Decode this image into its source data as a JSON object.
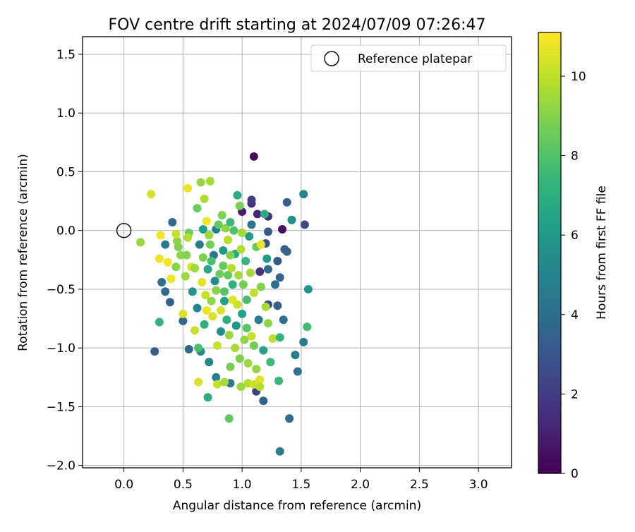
{
  "chart_data": {
    "type": "scatter",
    "title": "FOV centre drift starting at 2024/07/09 07:26:47",
    "xlabel": "Angular distance from reference (arcmin)",
    "ylabel": "Rotation from reference (arcmin)",
    "xlim": [
      -0.35,
      3.28
    ],
    "ylim": [
      -2.02,
      1.65
    ],
    "xticks": [
      0.0,
      0.5,
      1.0,
      1.5,
      2.0,
      2.5,
      3.0
    ],
    "xtick_labels": [
      "0.0",
      "0.5",
      "1.0",
      "1.5",
      "2.0",
      "2.5",
      "3.0"
    ],
    "yticks": [
      1.5,
      1.0,
      0.5,
      0.0,
      -0.5,
      -1.0,
      -1.5,
      -2.0
    ],
    "ytick_labels": [
      "1.5",
      "1.0",
      "0.5",
      "0.0",
      "−0.5",
      "−1.0",
      "−1.5",
      "−2.0"
    ],
    "grid": true,
    "legend": {
      "position": "top-right",
      "label": "Reference platepar",
      "marker": "open-circle"
    },
    "reference": {
      "x": 0.0,
      "y": 0.0
    },
    "colorbar": {
      "label": "Hours from first FF file",
      "colormap": "viridis",
      "range": [
        0,
        11.1
      ],
      "ticks": [
        0,
        2,
        4,
        6,
        8,
        10
      ],
      "tick_labels": [
        "0",
        "2",
        "4",
        "6",
        "8",
        "10"
      ]
    },
    "colormap_stops": [
      "#440154",
      "#482878",
      "#3e4989",
      "#31688e",
      "#26828e",
      "#1f9e89",
      "#35b779",
      "#6ece58",
      "#b5de2b",
      "#fde725"
    ],
    "points": [
      {
        "x": 1.1,
        "y": 0.63,
        "c": 0.3
      },
      {
        "x": 1.34,
        "y": 0.01,
        "c": 0.5
      },
      {
        "x": 1.0,
        "y": 0.16,
        "c": 1.0
      },
      {
        "x": 1.08,
        "y": 0.23,
        "c": 1.4
      },
      {
        "x": 1.13,
        "y": 0.14,
        "c": 1.1
      },
      {
        "x": 1.22,
        "y": 0.12,
        "c": 1.6
      },
      {
        "x": 1.53,
        "y": 0.05,
        "c": 2.4
      },
      {
        "x": 1.08,
        "y": 0.26,
        "c": 2.0
      },
      {
        "x": 1.15,
        "y": -0.35,
        "c": 1.5
      },
      {
        "x": 1.12,
        "y": -1.37,
        "c": 2.2
      },
      {
        "x": 1.22,
        "y": -0.01,
        "c": 3.2
      },
      {
        "x": 1.38,
        "y": 0.24,
        "c": 3.4
      },
      {
        "x": 1.2,
        "y": -0.11,
        "c": 2.8
      },
      {
        "x": 1.42,
        "y": 0.09,
        "c": 5.6
      },
      {
        "x": 1.52,
        "y": 0.31,
        "c": 5.0
      },
      {
        "x": 1.36,
        "y": -0.16,
        "c": 3.3
      },
      {
        "x": 1.38,
        "y": -0.18,
        "c": 3.5
      },
      {
        "x": 1.3,
        "y": -0.26,
        "c": 3.2
      },
      {
        "x": 1.32,
        "y": -0.4,
        "c": 3.6
      },
      {
        "x": 1.22,
        "y": -0.33,
        "c": 3.8
      },
      {
        "x": 1.56,
        "y": -0.5,
        "c": 5.7
      },
      {
        "x": 1.3,
        "y": -0.64,
        "c": 3.4
      },
      {
        "x": 1.22,
        "y": -0.63,
        "c": 2.5
      },
      {
        "x": 1.35,
        "y": -0.76,
        "c": 4.1
      },
      {
        "x": 1.55,
        "y": -0.82,
        "c": 7.7
      },
      {
        "x": 1.52,
        "y": -0.95,
        "c": 4.6
      },
      {
        "x": 1.45,
        "y": -1.06,
        "c": 4.8
      },
      {
        "x": 1.47,
        "y": -1.2,
        "c": 4.2
      },
      {
        "x": 1.4,
        "y": -1.6,
        "c": 4.0
      },
      {
        "x": 1.32,
        "y": -1.88,
        "c": 4.8
      },
      {
        "x": 1.18,
        "y": -1.45,
        "c": 3.6
      },
      {
        "x": 0.26,
        "y": -1.03,
        "c": 3.3
      },
      {
        "x": 0.35,
        "y": -0.52,
        "c": 3.8
      },
      {
        "x": 0.32,
        "y": -0.44,
        "c": 4.0
      },
      {
        "x": 0.39,
        "y": -0.61,
        "c": 3.5
      },
      {
        "x": 0.35,
        "y": -0.12,
        "c": 4.6
      },
      {
        "x": 0.41,
        "y": 0.07,
        "c": 3.8
      },
      {
        "x": 0.5,
        "y": -0.77,
        "c": 3.6
      },
      {
        "x": 0.55,
        "y": -1.01,
        "c": 3.7
      },
      {
        "x": 0.65,
        "y": -1.03,
        "c": 5.3
      },
      {
        "x": 0.72,
        "y": -1.12,
        "c": 5.0
      },
      {
        "x": 0.78,
        "y": -1.25,
        "c": 4.8
      },
      {
        "x": 0.9,
        "y": -1.3,
        "c": 4.5
      },
      {
        "x": 0.71,
        "y": -1.42,
        "c": 6.9
      },
      {
        "x": 0.89,
        "y": -1.6,
        "c": 8.3
      },
      {
        "x": 0.63,
        "y": -1.29,
        "c": 10.5
      },
      {
        "x": 0.79,
        "y": -1.31,
        "c": 10.1
      },
      {
        "x": 0.85,
        "y": -1.29,
        "c": 9.6
      },
      {
        "x": 0.9,
        "y": -1.16,
        "c": 8.8
      },
      {
        "x": 0.99,
        "y": -1.33,
        "c": 9.4
      },
      {
        "x": 1.05,
        "y": -1.3,
        "c": 9.8
      },
      {
        "x": 1.1,
        "y": -1.31,
        "c": 10.3
      },
      {
        "x": 1.15,
        "y": -1.27,
        "c": 10.6
      },
      {
        "x": 1.15,
        "y": -1.33,
        "c": 9.9
      },
      {
        "x": 1.31,
        "y": -1.28,
        "c": 7.4
      },
      {
        "x": 0.3,
        "y": -0.78,
        "c": 7.2
      },
      {
        "x": 0.14,
        "y": -0.1,
        "c": 9.3
      },
      {
        "x": 0.23,
        "y": 0.31,
        "c": 10.4
      },
      {
        "x": 0.3,
        "y": -0.24,
        "c": 10.8
      },
      {
        "x": 0.31,
        "y": -0.04,
        "c": 10.9
      },
      {
        "x": 0.37,
        "y": -0.27,
        "c": 10.9
      },
      {
        "x": 0.4,
        "y": -0.41,
        "c": 10.9
      },
      {
        "x": 0.44,
        "y": -0.31,
        "c": 9.0
      },
      {
        "x": 0.45,
        "y": -0.09,
        "c": 9.2
      },
      {
        "x": 0.46,
        "y": -0.14,
        "c": 8.9
      },
      {
        "x": 0.48,
        "y": -0.21,
        "c": 9.1
      },
      {
        "x": 0.5,
        "y": -0.71,
        "c": 10.5
      },
      {
        "x": 0.52,
        "y": -0.39,
        "c": 9.4
      },
      {
        "x": 0.53,
        "y": -0.21,
        "c": 9.0
      },
      {
        "x": 0.54,
        "y": 0.36,
        "c": 10.8
      },
      {
        "x": 0.55,
        "y": -0.02,
        "c": 8.6
      },
      {
        "x": 0.57,
        "y": -0.31,
        "c": 10.6
      },
      {
        "x": 0.6,
        "y": -0.32,
        "c": 9.4
      },
      {
        "x": 0.6,
        "y": -0.85,
        "c": 10.2
      },
      {
        "x": 0.62,
        "y": 0.19,
        "c": 8.5
      },
      {
        "x": 0.63,
        "y": -1.0,
        "c": 7.8
      },
      {
        "x": 0.64,
        "y": -0.12,
        "c": 4.8
      },
      {
        "x": 0.65,
        "y": 0.41,
        "c": 9.3
      },
      {
        "x": 0.66,
        "y": -0.44,
        "c": 10.7
      },
      {
        "x": 0.67,
        "y": 0.01,
        "c": 6.3
      },
      {
        "x": 0.67,
        "y": -0.23,
        "c": 8.9
      },
      {
        "x": 0.68,
        "y": 0.27,
        "c": 9.7
      },
      {
        "x": 0.69,
        "y": -0.55,
        "c": 10.2
      },
      {
        "x": 0.7,
        "y": 0.08,
        "c": 10.9
      },
      {
        "x": 0.7,
        "y": -0.68,
        "c": 10.8
      },
      {
        "x": 0.71,
        "y": -0.33,
        "c": 6.5
      },
      {
        "x": 0.73,
        "y": 0.42,
        "c": 9.6
      },
      {
        "x": 0.73,
        "y": -0.12,
        "c": 8.7
      },
      {
        "x": 0.74,
        "y": -0.6,
        "c": 9.2
      },
      {
        "x": 0.75,
        "y": -0.73,
        "c": 10.4
      },
      {
        "x": 0.76,
        "y": -0.21,
        "c": 4.4
      },
      {
        "x": 0.77,
        "y": -0.43,
        "c": 5.3
      },
      {
        "x": 0.78,
        "y": 0.01,
        "c": 4.9
      },
      {
        "x": 0.79,
        "y": -0.98,
        "c": 10.2
      },
      {
        "x": 0.8,
        "y": 0.05,
        "c": 8.3
      },
      {
        "x": 0.81,
        "y": -0.37,
        "c": 8.6
      },
      {
        "x": 0.82,
        "y": -0.68,
        "c": 10.5
      },
      {
        "x": 0.83,
        "y": 0.13,
        "c": 8.9
      },
      {
        "x": 0.84,
        "y": -0.17,
        "c": 5.9
      },
      {
        "x": 0.85,
        "y": -0.52,
        "c": 8.1
      },
      {
        "x": 0.86,
        "y": 0.02,
        "c": 9.2
      },
      {
        "x": 0.87,
        "y": -0.76,
        "c": 7.0
      },
      {
        "x": 0.88,
        "y": -0.38,
        "c": 8.4
      },
      {
        "x": 0.89,
        "y": -0.89,
        "c": 9.4
      },
      {
        "x": 0.9,
        "y": 0.07,
        "c": 7.5
      },
      {
        "x": 0.91,
        "y": -0.32,
        "c": 9.9
      },
      {
        "x": 0.92,
        "y": -0.59,
        "c": 10.6
      },
      {
        "x": 0.93,
        "y": 0.0,
        "c": 8.0
      },
      {
        "x": 0.94,
        "y": -0.2,
        "c": 6.6
      },
      {
        "x": 0.95,
        "y": -0.81,
        "c": 5.8
      },
      {
        "x": 0.96,
        "y": 0.3,
        "c": 6.8
      },
      {
        "x": 0.97,
        "y": -0.38,
        "c": 9.6
      },
      {
        "x": 0.98,
        "y": -1.09,
        "c": 8.9
      },
      {
        "x": 0.99,
        "y": -0.16,
        "c": 9.8
      },
      {
        "x": 1.0,
        "y": -0.71,
        "c": 6.4
      },
      {
        "x": 1.01,
        "y": -0.46,
        "c": 8.7
      },
      {
        "x": 1.02,
        "y": -0.93,
        "c": 9.2
      },
      {
        "x": 1.03,
        "y": -0.26,
        "c": 7.4
      },
      {
        "x": 1.04,
        "y": -0.59,
        "c": 7.8
      },
      {
        "x": 1.05,
        "y": -1.13,
        "c": 9.4
      },
      {
        "x": 1.06,
        "y": -0.05,
        "c": 6.0
      },
      {
        "x": 1.07,
        "y": -0.36,
        "c": 9.6
      },
      {
        "x": 1.08,
        "y": -0.9,
        "c": 10.2
      },
      {
        "x": 1.1,
        "y": -0.53,
        "c": 10.0
      },
      {
        "x": 1.12,
        "y": -0.14,
        "c": 8.5
      },
      {
        "x": 1.14,
        "y": -0.76,
        "c": 4.6
      },
      {
        "x": 1.16,
        "y": -0.48,
        "c": 9.0
      },
      {
        "x": 1.18,
        "y": -1.02,
        "c": 6.5
      },
      {
        "x": 1.19,
        "y": 0.14,
        "c": 6.8
      },
      {
        "x": 1.2,
        "y": -0.65,
        "c": 9.6
      },
      {
        "x": 1.21,
        "y": -0.24,
        "c": 6.0
      },
      {
        "x": 1.22,
        "y": -0.79,
        "c": 9.2
      },
      {
        "x": 1.24,
        "y": -1.12,
        "c": 7.5
      },
      {
        "x": 1.26,
        "y": -0.92,
        "c": 10.0
      },
      {
        "x": 1.28,
        "y": -0.46,
        "c": 3.9
      },
      {
        "x": 1.32,
        "y": -0.91,
        "c": 7.2
      },
      {
        "x": 0.85,
        "y": -0.6,
        "c": 6.2
      },
      {
        "x": 0.88,
        "y": -0.08,
        "c": 9.9
      },
      {
        "x": 0.92,
        "y": -0.46,
        "c": 7.0
      },
      {
        "x": 0.96,
        "y": -0.63,
        "c": 10.3
      },
      {
        "x": 1.0,
        "y": -0.02,
        "c": 9.5
      },
      {
        "x": 0.78,
        "y": -0.51,
        "c": 9.1
      },
      {
        "x": 0.74,
        "y": -0.26,
        "c": 7.8
      },
      {
        "x": 0.82,
        "y": -0.86,
        "c": 5.4
      },
      {
        "x": 0.58,
        "y": -0.52,
        "c": 5.7
      },
      {
        "x": 0.62,
        "y": -0.66,
        "c": 5.0
      },
      {
        "x": 0.68,
        "y": -0.8,
        "c": 7.0
      },
      {
        "x": 0.94,
        "y": -1.0,
        "c": 9.6
      },
      {
        "x": 1.04,
        "y": -0.83,
        "c": 8.2
      },
      {
        "x": 1.1,
        "y": -0.98,
        "c": 8.6
      },
      {
        "x": 1.12,
        "y": -1.18,
        "c": 9.3
      },
      {
        "x": 1.16,
        "y": -0.12,
        "c": 10.7
      },
      {
        "x": 0.98,
        "y": 0.21,
        "c": 8.8
      },
      {
        "x": 1.08,
        "y": 0.05,
        "c": 4.2
      },
      {
        "x": 0.9,
        "y": -0.21,
        "c": 9.0
      },
      {
        "x": 0.84,
        "y": -0.3,
        "c": 8.4
      },
      {
        "x": 0.72,
        "y": -0.04,
        "c": 9.4
      },
      {
        "x": 0.54,
        "y": -0.06,
        "c": 9.8
      },
      {
        "x": 0.44,
        "y": -0.03,
        "c": 10.2
      }
    ]
  }
}
